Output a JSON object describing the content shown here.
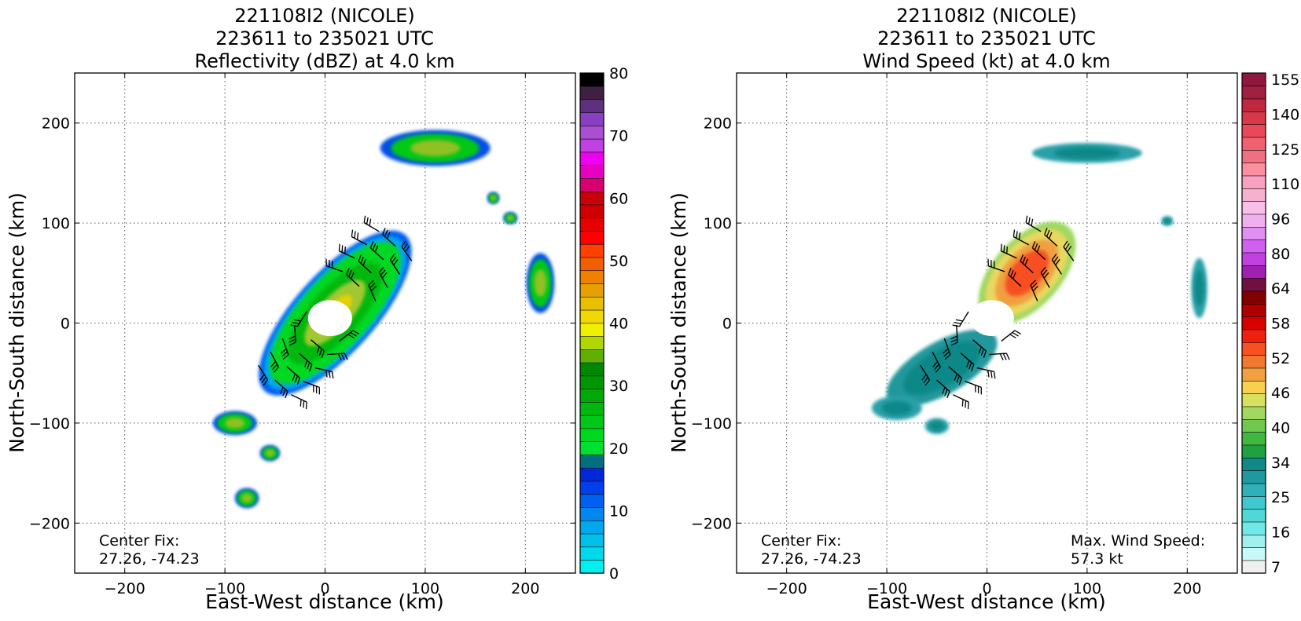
{
  "chart_data": [
    {
      "type": "heatmap",
      "title_lines": [
        "221108I2 (NICOLE)",
        "223611 to 235021 UTC",
        "Reflectivity (dBZ) at 4.0 km"
      ],
      "xlabel": "East-West distance (km)",
      "ylabel": "North-South distance (km)",
      "xlim": [
        -250,
        250
      ],
      "ylim": [
        -250,
        250
      ],
      "x_ticks": [
        -200,
        -100,
        0,
        100,
        200
      ],
      "y_ticks": [
        -200,
        -100,
        0,
        100,
        200
      ],
      "grid": true,
      "annotations": [
        {
          "id": "center-fix",
          "lines": [
            "Center Fix:",
            "27.26, -74.23"
          ]
        }
      ],
      "colorbar": {
        "min": 0,
        "max": 80,
        "tick_labels": [
          "0",
          "10",
          "20",
          "30",
          "40",
          "50",
          "60",
          "70",
          "80"
        ],
        "tick_values": [
          0,
          10,
          20,
          30,
          40,
          50,
          60,
          70,
          80
        ],
        "colors": [
          "#00f0f0",
          "#00d8ec",
          "#00c0ec",
          "#00a8ec",
          "#0088f0",
          "#0060f0",
          "#0040ec",
          "#0028d8",
          "#007080",
          "#00e030",
          "#00d820",
          "#00c818",
          "#00b810",
          "#00a808",
          "#009800",
          "#008800",
          "#60b000",
          "#b0d800",
          "#f0f000",
          "#f0d800",
          "#e8c000",
          "#e8a000",
          "#f08000",
          "#f06000",
          "#ff4000",
          "#ff0000",
          "#e80000",
          "#d00000",
          "#c80008",
          "#d80070",
          "#e800c0",
          "#f000f0",
          "#c040e0",
          "#a850d0",
          "#8840c0",
          "#603080",
          "#402040",
          "#000000"
        ]
      },
      "wind_barbs": true,
      "echo_regions": [
        {
          "kind": "rainband",
          "x": 10,
          "y": 10,
          "rx": 105,
          "ry": 40,
          "angle_deg": 48
        },
        {
          "kind": "eye",
          "x": 5,
          "y": 5,
          "rx": 22,
          "ry": 18
        },
        {
          "kind": "cell",
          "x": 110,
          "y": 175,
          "rx": 55,
          "ry": 18
        },
        {
          "kind": "cell",
          "x": 215,
          "y": 40,
          "rx": 14,
          "ry": 30
        },
        {
          "kind": "cell",
          "x": -90,
          "y": -100,
          "rx": 22,
          "ry": 12
        },
        {
          "kind": "cell",
          "x": -55,
          "y": -130,
          "rx": 10,
          "ry": 8
        },
        {
          "kind": "cell",
          "x": -78,
          "y": -175,
          "rx": 12,
          "ry": 10
        },
        {
          "kind": "cell",
          "x": 185,
          "y": 105,
          "rx": 7,
          "ry": 6
        },
        {
          "kind": "cell",
          "x": 168,
          "y": 125,
          "rx": 6,
          "ry": 6
        }
      ]
    },
    {
      "type": "heatmap",
      "title_lines": [
        "221108I2 (NICOLE)",
        "223611 to 235021 UTC",
        "Wind Speed (kt) at 4.0 km"
      ],
      "xlabel": "East-West distance (km)",
      "ylabel": "North-South distance (km)",
      "xlim": [
        -250,
        250
      ],
      "ylim": [
        -250,
        250
      ],
      "x_ticks": [
        -200,
        -100,
        0,
        100,
        200
      ],
      "y_ticks": [
        -200,
        -100,
        0,
        100,
        200
      ],
      "grid": true,
      "annotations": [
        {
          "id": "center-fix",
          "lines": [
            "Center Fix:",
            "27.26, -74.23"
          ]
        },
        {
          "id": "max-wind",
          "lines": [
            "Max. Wind Speed:",
            "57.3 kt"
          ]
        }
      ],
      "max_wind_speed_kt": 57.3,
      "colorbar": {
        "tick_labels": [
          "7",
          "16",
          "25",
          "34",
          "40",
          "46",
          "52",
          "58",
          "64",
          "80",
          "96",
          "110",
          "125",
          "140",
          "155"
        ],
        "colors": [
          "#f0f0f0",
          "#c8f8f8",
          "#a0f0f0",
          "#70e8e8",
          "#50d8d8",
          "#40c8d0",
          "#30b0b8",
          "#2098a0",
          "#108888",
          "#20a040",
          "#40b840",
          "#70c850",
          "#a0d860",
          "#d8e060",
          "#f8d050",
          "#f0a040",
          "#f07830",
          "#f85020",
          "#f02010",
          "#d80000",
          "#b00000",
          "#800000",
          "#701040",
          "#a020b0",
          "#c040e0",
          "#d060f0",
          "#e090f0",
          "#f0b0f0",
          "#f8c0e8",
          "#f8b0d0",
          "#f8a0c0",
          "#f890a0",
          "#f07080",
          "#f06070",
          "#e84858",
          "#d83848",
          "#c02840",
          "#a02040",
          "#901840"
        ]
      },
      "wind_barbs": true,
      "speed_regions": [
        {
          "kind": "inner-core",
          "x": 40,
          "y": 50,
          "rx": 62,
          "ry": 34,
          "angle_deg": 48
        },
        {
          "kind": "southwest-band",
          "x": -45,
          "y": -45,
          "rx": 62,
          "ry": 26,
          "angle_deg": 30
        },
        {
          "kind": "eye",
          "x": 5,
          "y": 5,
          "rx": 22,
          "ry": 18
        },
        {
          "kind": "cell",
          "x": 100,
          "y": 170,
          "rx": 55,
          "ry": 10
        },
        {
          "kind": "cell",
          "x": 212,
          "y": 35,
          "rx": 8,
          "ry": 30
        },
        {
          "kind": "cell",
          "x": -90,
          "y": -85,
          "rx": 25,
          "ry": 12
        },
        {
          "kind": "cell",
          "x": -50,
          "y": -103,
          "rx": 12,
          "ry": 8
        },
        {
          "kind": "cell",
          "x": 180,
          "y": 102,
          "rx": 6,
          "ry": 5
        }
      ]
    }
  ]
}
